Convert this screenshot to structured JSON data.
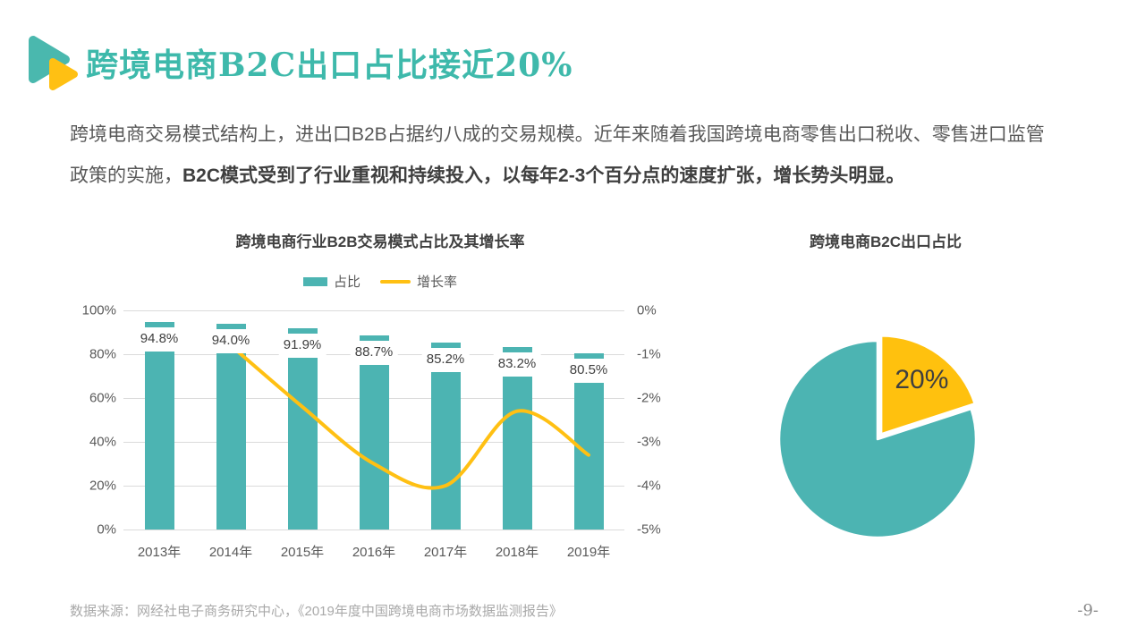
{
  "slide": {
    "title": "跨境电商B2C出口占比接近20%",
    "body_regular": "跨境电商交易模式结构上，进出口B2B占据约八成的交易规模。近年来随着我国跨境电商零售出口税收、零售进口监管政策的实施，",
    "body_bold": "B2C模式受到了行业重视和持续投入，以每年2-3个百分点的速度扩张，增长势头明显。",
    "source": "数据来源：网经社电子商务研究中心，《2019年度中国跨境电商市场数据监测报告》",
    "page_number": "-9-"
  },
  "colors": {
    "title_teal": "#3EB9AB",
    "bar_teal": "#4CB4B2",
    "line_yellow": "#FFC013",
    "pie_yellow": "#FFC10E",
    "grid": "#DBDBDB",
    "axis_text": "#595959",
    "label_text": "#404040",
    "footer_text": "#A9A9A9"
  },
  "chart_data": [
    {
      "type": "bar",
      "title": "跨境电商行业B2B交易模式占比及其增长率",
      "categories": [
        "2013年",
        "2014年",
        "2015年",
        "2016年",
        "2017年",
        "2018年",
        "2019年"
      ],
      "series": [
        {
          "name": "占比",
          "type": "bar",
          "axis": "left",
          "color": "#4CB4B2",
          "values": [
            94.8,
            94.0,
            91.9,
            88.7,
            85.2,
            83.2,
            80.5
          ],
          "labels": [
            "94.8%",
            "94.0%",
            "91.9%",
            "88.7%",
            "85.2%",
            "83.2%",
            "80.5%"
          ]
        },
        {
          "name": "增长率",
          "type": "line",
          "axis": "right",
          "color": "#FFC013",
          "smooth": true,
          "values": [
            null,
            -0.8,
            -2.2,
            -3.5,
            -4.0,
            -2.3,
            -3.3
          ]
        }
      ],
      "left_axis": {
        "min": 0,
        "max": 100,
        "ticks": [
          "100%",
          "80%",
          "60%",
          "40%",
          "20%",
          "0%"
        ]
      },
      "right_axis": {
        "min": -5,
        "max": 0,
        "ticks": [
          "0%",
          "-1%",
          "-2%",
          "-3%",
          "-4%",
          "-5%"
        ]
      },
      "legend_position": "top",
      "grid": true
    },
    {
      "type": "pie",
      "title": "跨境电商B2C出口占比",
      "slices": [
        {
          "key": "b2c-export",
          "value": 20,
          "label": "20%",
          "color": "#FFC10E",
          "exploded": true
        },
        {
          "key": "remainder",
          "value": 80,
          "label": "",
          "color": "#4CB4B2",
          "exploded": false
        }
      ],
      "start_angle": 0,
      "label_color": "#3F3F3F"
    }
  ]
}
